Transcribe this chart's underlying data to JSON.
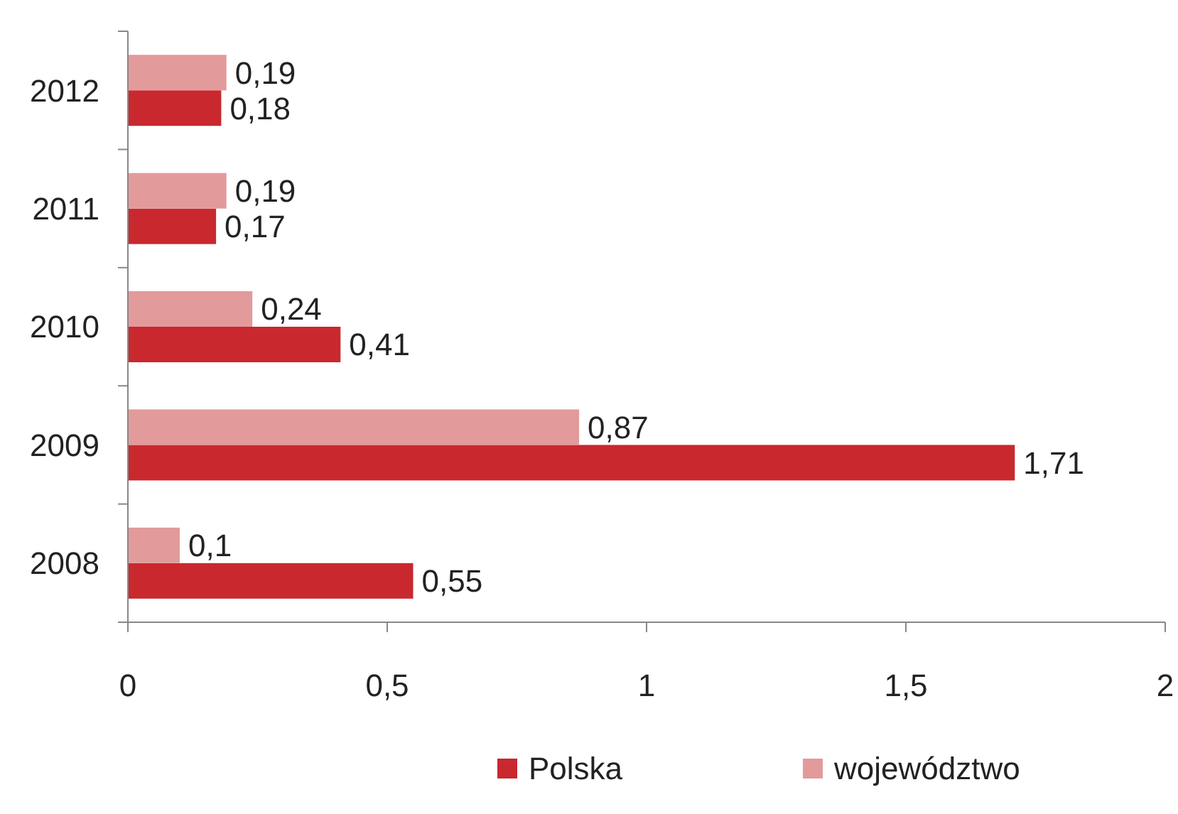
{
  "chart_data": {
    "type": "bar",
    "orientation": "horizontal",
    "categories": [
      "2012",
      "2011",
      "2010",
      "2009",
      "2008"
    ],
    "series": [
      {
        "name": "Polska",
        "color": "#c8282e",
        "values": [
          0.18,
          0.17,
          0.41,
          1.71,
          0.55
        ],
        "value_labels": [
          "0,18",
          "0,17",
          "0,41",
          "1,71",
          "0,55"
        ]
      },
      {
        "name": "województwo",
        "color": "#e39a9b",
        "values": [
          0.19,
          0.19,
          0.24,
          0.87,
          0.1
        ],
        "value_labels": [
          "0,19",
          "0,19",
          "0,24",
          "0,87",
          "0,1"
        ]
      }
    ],
    "xlim": [
      0,
      2
    ],
    "xticks": [
      0,
      {
        "value": 0.5,
        "label": "0,5"
      },
      1,
      {
        "value": 1.5,
        "label": "1,5"
      },
      2
    ],
    "grid": false,
    "legend": "bottom"
  }
}
